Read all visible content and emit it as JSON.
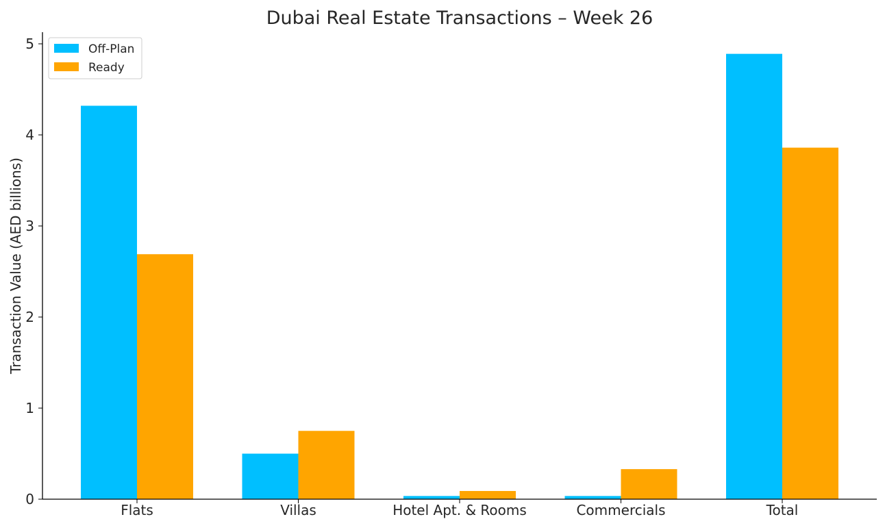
{
  "chart_data": {
    "type": "bar",
    "title": "Dubai Real Estate Transactions – Week 26",
    "xlabel": "",
    "ylabel": "Transaction Value (AED billions)",
    "categories": [
      "Flats",
      "Villas",
      "Hotel Apt. & Rooms",
      "Commercials",
      "Total"
    ],
    "series": [
      {
        "name": "Off-Plan",
        "color": "#00BFFF",
        "values": [
          4.32,
          0.5,
          0.035,
          0.035,
          4.89
        ]
      },
      {
        "name": "Ready",
        "color": "#FFA500",
        "values": [
          2.69,
          0.75,
          0.09,
          0.33,
          3.86
        ]
      }
    ],
    "ylim": [
      0,
      5.13
    ],
    "yticks": [
      "0",
      "1",
      "2",
      "3",
      "4",
      "5"
    ],
    "grid": false,
    "legend": "top-left"
  }
}
